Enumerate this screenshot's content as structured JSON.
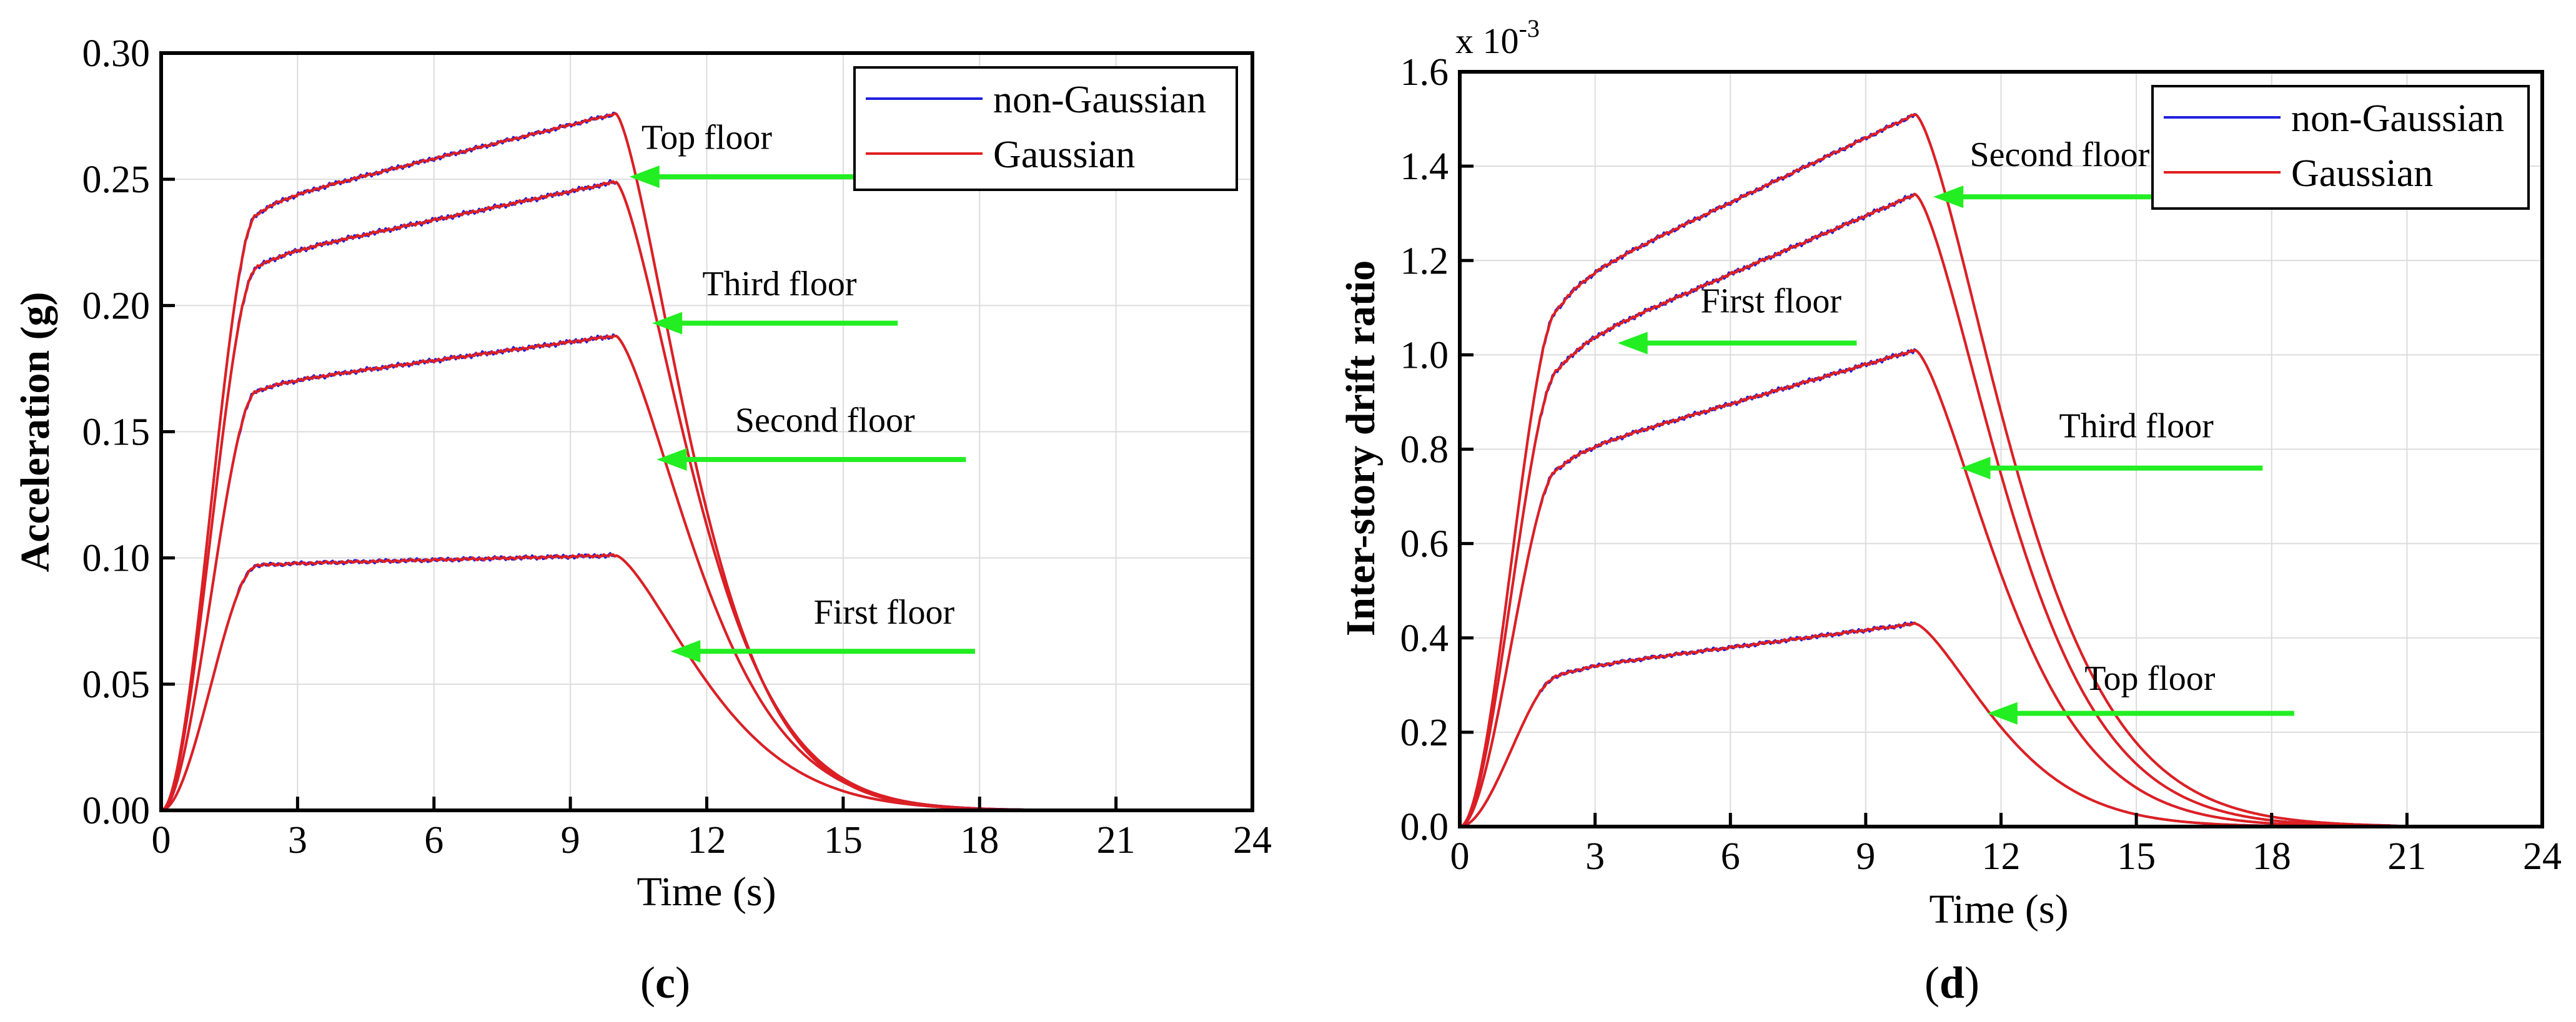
{
  "figure": {
    "panels": [
      "c",
      "d"
    ]
  },
  "chart_data": [
    {
      "id": "c",
      "type": "line",
      "panel_label_prefix": "(",
      "panel_label": "c",
      "panel_label_suffix": ")",
      "title": "",
      "xlabel": "Time (s)",
      "ylabel": "Acceleration (g)",
      "xlim": [
        0,
        24
      ],
      "ylim": [
        0,
        0.3
      ],
      "xticks": [
        0,
        3,
        6,
        9,
        12,
        15,
        18,
        21,
        24
      ],
      "xtick_labels": [
        "0",
        "3",
        "6",
        "9",
        "12",
        "15",
        "18",
        "21",
        "24"
      ],
      "yticks": [
        0,
        0.05,
        0.1,
        0.15,
        0.2,
        0.25,
        0.3
      ],
      "ytick_labels": [
        "0.00",
        "0.05",
        "0.10",
        "0.15",
        "0.20",
        "0.25",
        "0.30"
      ],
      "y_exponent": "",
      "grid": true,
      "legend_position": "top-right",
      "legend": [
        {
          "name": "non-Gaussian",
          "color": "#1f1fe0"
        },
        {
          "name": "Gaussian",
          "color": "#e01f1f"
        }
      ],
      "curve_shape": {
        "t_rise": 2.1,
        "t_peak": 10.0,
        "decay_tau": [
          2.6,
          2.45,
          2.35,
          2.25
        ],
        "decay_end": 21.0
      },
      "floors": [
        {
          "name": "First floor",
          "plateau_start": 0.097,
          "peak": 0.101
        },
        {
          "name": "Second floor",
          "plateau_start": 0.166,
          "peak": 0.188
        },
        {
          "name": "Third floor",
          "plateau_start": 0.215,
          "peak": 0.249
        },
        {
          "name": "Top floor",
          "plateau_start": 0.236,
          "peak": 0.276
        }
      ],
      "annotations": [
        {
          "text": "Top floor",
          "arrow_x": [
            10.3,
            15.6
          ],
          "arrow_y": 0.251,
          "text_x": 12.0,
          "text_y": 0.262
        },
        {
          "text": "Third floor",
          "arrow_x": [
            10.8,
            16.2
          ],
          "arrow_y": 0.193,
          "text_x": 13.6,
          "text_y": 0.204
        },
        {
          "text": "Second floor",
          "arrow_x": [
            10.9,
            17.7
          ],
          "arrow_y": 0.139,
          "text_x": 14.6,
          "text_y": 0.15
        },
        {
          "text": "First floor",
          "arrow_x": [
            11.2,
            17.9
          ],
          "arrow_y": 0.063,
          "text_x": 15.9,
          "text_y": 0.074
        }
      ]
    },
    {
      "id": "d",
      "type": "line",
      "panel_label_prefix": "(",
      "panel_label": "d",
      "panel_label_suffix": ")",
      "title": "",
      "xlabel": "Time (s)",
      "ylabel": "Inter-story drift ratio",
      "xlim": [
        0,
        24
      ],
      "ylim": [
        0,
        1.6
      ],
      "xticks": [
        0,
        3,
        6,
        9,
        12,
        15,
        18,
        21,
        24
      ],
      "xtick_labels": [
        "0",
        "3",
        "6",
        "9",
        "12",
        "15",
        "18",
        "21",
        "24"
      ],
      "yticks": [
        0,
        0.2,
        0.4,
        0.6,
        0.8,
        1.0,
        1.2,
        1.4,
        1.6
      ],
      "ytick_labels": [
        "0.0",
        "0.2",
        "0.4",
        "0.6",
        "0.8",
        "1.0",
        "1.2",
        "1.4",
        "1.6"
      ],
      "y_exponent_base": "x 10",
      "y_exponent_power": "-3",
      "grid": true,
      "legend_position": "top-right",
      "legend": [
        {
          "name": "non-Gaussian",
          "color": "#1f1fe0"
        },
        {
          "name": "Gaussian",
          "color": "#e01f1f"
        }
      ],
      "curve_shape": {
        "t_rise": 2.2,
        "t_peak": 10.1,
        "decay_tau": [
          2.4,
          2.6,
          2.75,
          2.9
        ],
        "decay_end": 20.6
      },
      "floors": [
        {
          "name": "Top floor",
          "plateau_start": 0.32,
          "peak": 0.43
        },
        {
          "name": "Third floor",
          "plateau_start": 0.76,
          "peak": 1.01
        },
        {
          "name": "First floor",
          "plateau_start": 0.97,
          "peak": 1.34
        },
        {
          "name": "Second floor",
          "plateau_start": 1.1,
          "peak": 1.51
        }
      ],
      "annotations": [
        {
          "text": "Second floor",
          "arrow_x": [
            10.5,
            15.5
          ],
          "arrow_y": 1.335,
          "text_x": 13.3,
          "text_y": 1.4
        },
        {
          "text": "First floor",
          "arrow_x": [
            3.5,
            8.8
          ],
          "arrow_y": 1.025,
          "text_x": 6.9,
          "text_y": 1.09
        },
        {
          "text": "Third floor",
          "arrow_x": [
            11.1,
            17.8
          ],
          "arrow_y": 0.76,
          "text_x": 15.0,
          "text_y": 0.825
        },
        {
          "text": "Top floor",
          "arrow_x": [
            11.7,
            18.5
          ],
          "arrow_y": 0.24,
          "text_x": 15.3,
          "text_y": 0.29
        }
      ]
    }
  ]
}
